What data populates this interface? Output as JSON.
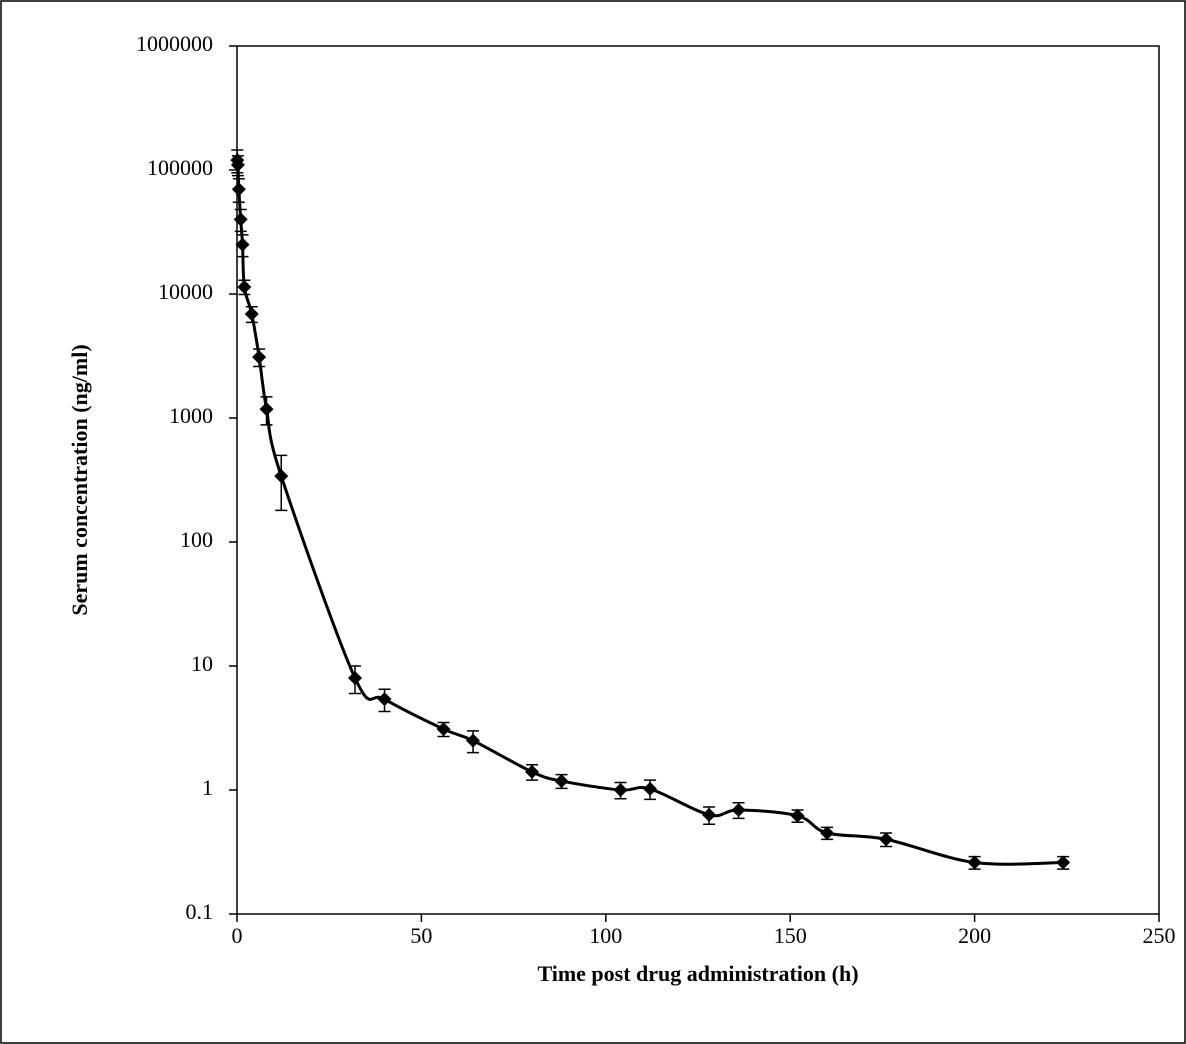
{
  "chart_data": {
    "type": "line",
    "xlabel": "Time post drug administration  (h)",
    "ylabel": "Serum concentration (ng/ml)",
    "x": [
      0.083,
      0.25,
      0.5,
      1,
      1.5,
      2,
      4,
      6,
      8,
      12,
      32,
      40,
      56,
      64,
      80,
      88,
      104,
      112,
      128,
      136,
      152,
      160,
      176,
      200,
      224
    ],
    "values": [
      120000,
      110000,
      70000,
      40000,
      25000,
      11400,
      6900,
      3100,
      1180,
      340,
      8,
      5.4,
      3.1,
      2.5,
      1.4,
      1.18,
      1.0,
      1.02,
      0.63,
      0.69,
      0.62,
      0.45,
      0.4,
      0.26,
      0.26
    ],
    "errors": [
      25000,
      20000,
      15000,
      8000,
      5000,
      1500,
      1000,
      500,
      300,
      160,
      2,
      1.1,
      0.4,
      0.5,
      0.2,
      0.15,
      0.15,
      0.18,
      0.1,
      0.1,
      0.07,
      0.05,
      0.05,
      0.03,
      0.03
    ],
    "color": "#000000",
    "xlim": [
      0,
      250
    ],
    "xticks": [
      0,
      50,
      100,
      150,
      200,
      250
    ],
    "ylim": [
      0.1,
      1000000
    ],
    "yticks": [
      0.1,
      1,
      10,
      100,
      1000,
      10000,
      100000,
      1000000
    ],
    "log_y": true
  }
}
